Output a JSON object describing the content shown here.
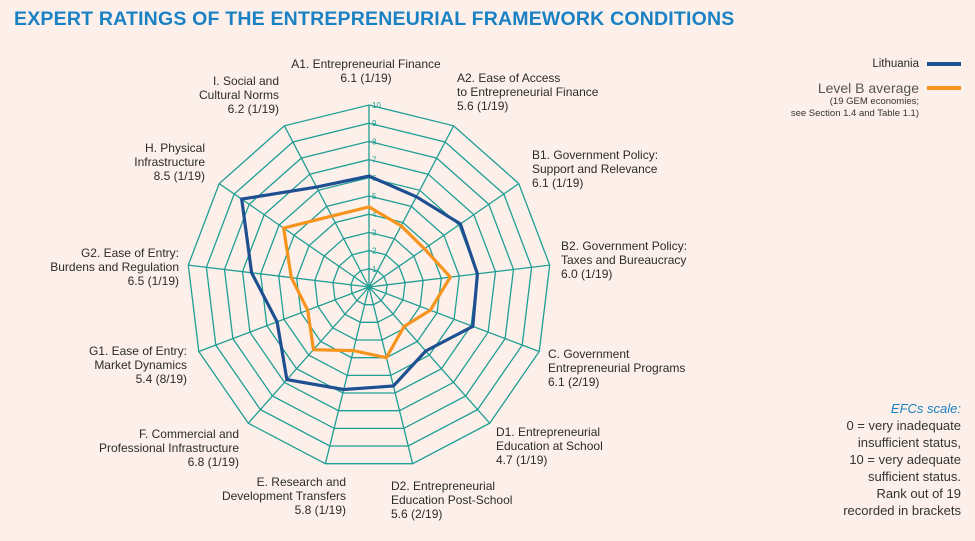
{
  "title": "EXPERT RATINGS OF THE ENTREPRENEURIAL FRAMEWORK CONDITIONS",
  "legend": {
    "series1": "Lithuania",
    "series2": "Level B average",
    "series2_note_line1": "(19 GEM economies;",
    "series2_note_line2": "see Section 1.4 and Table 1.1)"
  },
  "scale_note": {
    "title": "EFCs scale:",
    "lines": [
      "0 = very inadequate",
      "insufficient status,",
      "10 = very adequate",
      "sufficient status.",
      "Rank out of 19",
      "recorded in brackets"
    ]
  },
  "colors": {
    "grid": "#1f9e94",
    "lithuania": "#1d4f91",
    "average": "#f7941d",
    "title": "#1a82c4"
  },
  "chart_data": {
    "type": "radar",
    "title": "EXPERT RATINGS OF THE ENTREPRENEURIAL FRAMEWORK CONDITIONS",
    "range": [
      0,
      10
    ],
    "ticks": [
      "1",
      "2",
      "3",
      "4",
      "5",
      "6",
      "7",
      "8",
      "9",
      "10"
    ],
    "categories": [
      "A1. Entrepreneurial Finance",
      "A2. Ease of Access to Entrepreneurial Finance",
      "B1. Government Policy: Support and Relevance",
      "B2. Government Policy: Taxes and Bureaucracy",
      "C. Government Entrepreneurial Programs",
      "D1. Entrepreneurial Education at School",
      "D2. Entrepreneurial Education Post-School",
      "E. Research and Development Transfers",
      "F. Commercial and Professional Infrastructure",
      "G1. Ease of Entry: Market Dynamics",
      "G2. Ease of Entry: Burdens and Regulation",
      "H. Physical Infrastructure",
      "I. Social and Cultural Norms"
    ],
    "axis_labels": [
      [
        "A1. Entrepreneurial Finance",
        "6.1 (1/19)"
      ],
      [
        "A2. Ease of Access",
        "to Entrepreneurial Finance",
        "5.6 (1/19)"
      ],
      [
        "B1. Government Policy:",
        "Support and Relevance",
        "6.1 (1/19)"
      ],
      [
        "B2. Government Policy:",
        "Taxes and Bureaucracy",
        "6.0 (1/19)"
      ],
      [
        "C. Government",
        "Entrepreneurial Programs",
        "6.1 (2/19)"
      ],
      [
        "D1. Entrepreneurial",
        "Education at School",
        "4.7 (1/19)"
      ],
      [
        "D2. Entrepreneurial",
        "Education Post-School",
        "5.6 (2/19)"
      ],
      [
        "E. Research and",
        "Development Transfers",
        "5.8 (1/19)"
      ],
      [
        "F. Commercial and",
        "Professional Infrastructure",
        "6.8 (1/19)"
      ],
      [
        "G1. Ease of Entry:",
        "Market Dynamics",
        "5.4 (8/19)"
      ],
      [
        "G2. Ease of Entry:",
        "Burdens and Regulation",
        "6.5 (1/19)"
      ],
      [
        "H. Physical",
        "Infrastructure",
        "8.5 (1/19)"
      ],
      [
        "I. Social and",
        "Cultural Norms",
        "6.2 (1/19)"
      ]
    ],
    "series": [
      {
        "name": "Lithuania",
        "values": [
          6.1,
          5.6,
          6.1,
          6.0,
          6.1,
          4.7,
          5.6,
          5.8,
          6.8,
          5.4,
          6.5,
          8.5,
          6.2
        ]
      },
      {
        "name": "Level B average",
        "values": [
          4.4,
          3.8,
          3.7,
          4.5,
          3.6,
          2.9,
          4.0,
          3.6,
          4.6,
          3.6,
          4.3,
          5.7,
          4.4
        ]
      }
    ]
  }
}
